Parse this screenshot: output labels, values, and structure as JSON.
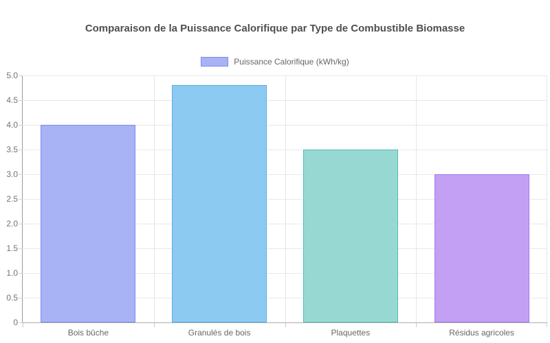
{
  "title": "Comparaison de la Puissance Calorifique par Type de Combustible Biomasse",
  "legend": {
    "label": "Puissance Calorifique (kWh/kg)",
    "swatch_fill": "#a8b3f6",
    "swatch_border": "#7c8be8"
  },
  "chart_data": {
    "type": "bar",
    "title": "Comparaison de la Puissance Calorifique par Type de Combustible Biomasse",
    "categories": [
      "Bois bûche",
      "Granulés de bois",
      "Plaquettes",
      "Résidus agricoles"
    ],
    "series": [
      {
        "name": "Puissance Calorifique (kWh/kg)",
        "values": [
          4.0,
          4.8,
          3.5,
          3.0
        ]
      }
    ],
    "bar_colors": [
      {
        "fill": "#a8b3f6",
        "border": "#7c8be8"
      },
      {
        "fill": "#8dcaf2",
        "border": "#54ace4"
      },
      {
        "fill": "#97d9d2",
        "border": "#4cbfb6"
      },
      {
        "fill": "#c3a0f4",
        "border": "#a179e6"
      }
    ],
    "xlabel": "",
    "ylabel": "",
    "ylim": [
      0,
      5
    ],
    "ytick_step": 0.5,
    "ytick_labels": [
      "5.0",
      "4.5",
      "4.0",
      "3.5",
      "3.0",
      "2.5",
      "2.0",
      "1.5",
      "1.0",
      "0.5",
      "0"
    ],
    "grid": true,
    "legend_position": "top"
  },
  "colors": {
    "title_text": "#4f4f4f",
    "tick_text": "#737373",
    "category_text": "#666666",
    "gridline": "#e8e8e8",
    "axis_line": "#999999",
    "background": "#ffffff"
  }
}
